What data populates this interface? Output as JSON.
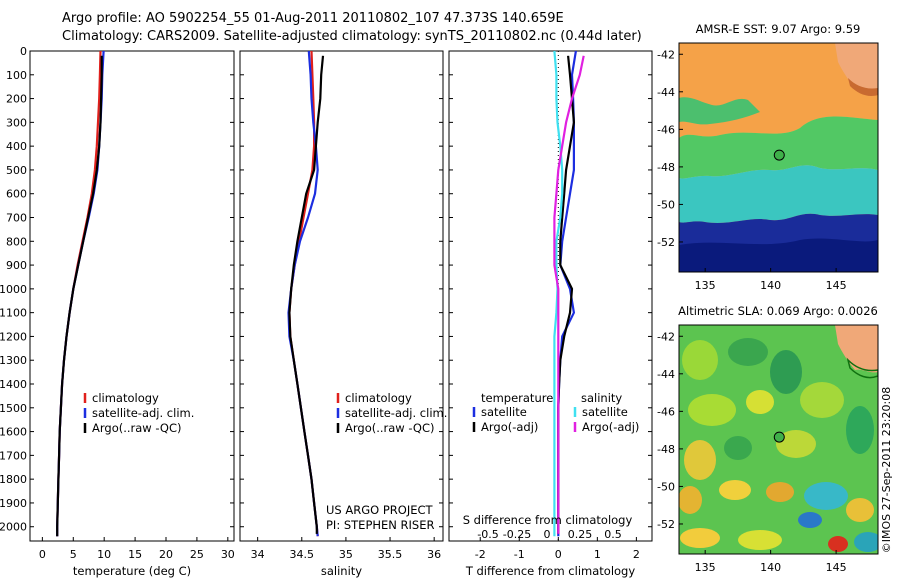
{
  "header": {
    "title_line1": "Argo profile: AO 5902254_55 01-Aug-2011 20110802_107 47.373S 140.659E",
    "title_line2": "Climatology: CARS2009. Satellite-adjusted climatology: synTS_20110802.nc (0.44d later)"
  },
  "colors": {
    "climatology": "#e0201c",
    "satellite_adj": "#1c2ee0",
    "argo": "#000000",
    "sat_salinity": "#3fe0f0",
    "argo_salinity": "#e020e0"
  },
  "depth_ticks": [
    "0",
    "100",
    "200",
    "300",
    "400",
    "500",
    "600",
    "700",
    "800",
    "900",
    "1000",
    "1100",
    "1200",
    "1300",
    "1400",
    "1500",
    "1600",
    "1700",
    "1800",
    "1900",
    "2000"
  ],
  "panels": {
    "temperature": {
      "xlabel": "temperature (deg C)",
      "xticks": [
        "0",
        "5",
        "10",
        "15",
        "20",
        "25",
        "30"
      ],
      "legend": [
        "climatology",
        "satellite-adj. clim.",
        "Argo(..raw -QC)"
      ]
    },
    "salinity": {
      "xlabel": "salinity",
      "xticks": [
        "34",
        "34.5",
        "35",
        "35.5",
        "36"
      ],
      "legend": [
        "climatology",
        "satellite-adj. clim.",
        "Argo(..raw -QC)"
      ],
      "credit_line1": "US ARGO PROJECT",
      "credit_line2": "PI: STEPHEN RISER"
    },
    "difference": {
      "xlabel": "T difference from climatology",
      "xticks": [
        "-2",
        "-1",
        "0",
        "1",
        "2"
      ],
      "s_label": "S difference from climatology",
      "s_ticks": [
        "-0.5",
        "-0.25",
        "0",
        "0.25",
        "0.5"
      ],
      "legend_temp_title": "temperature",
      "legend_sal_title": "salinity",
      "legend_temp": [
        "satellite",
        "Argo(-adj)"
      ],
      "legend_sal": [
        "satellite",
        "Argo(-adj)"
      ]
    }
  },
  "maps": {
    "sst": {
      "title": "AMSR-E SST: 9.07 Argo: 9.59",
      "yticks": [
        "-42",
        "-44",
        "-46",
        "-48",
        "-50",
        "-52"
      ],
      "xticks": [
        "135",
        "140",
        "145"
      ]
    },
    "sla": {
      "title": "Altimetric SLA: 0.069 Argo: 0.0026",
      "yticks": [
        "-42",
        "-44",
        "-46",
        "-48",
        "-50",
        "-52"
      ],
      "xticks": [
        "135",
        "140",
        "145"
      ]
    },
    "float_position": {
      "lon": 140.659,
      "lat": -47.373
    }
  },
  "stamp": "©IMOS 27-Sep-2011 23:20:08",
  "chart_data": [
    {
      "type": "line",
      "title": "",
      "xlabel": "temperature (deg C)",
      "ylabel": "",
      "xlim": [
        -2,
        31
      ],
      "ylim": [
        2060,
        0
      ],
      "series": [
        {
          "name": "climatology",
          "color": "#e0201c",
          "x": [
            9.4,
            9.3,
            9.2,
            9.0,
            8.8,
            8.5,
            8.0,
            7.3,
            6.5,
            5.7,
            5.0,
            4.4,
            3.9,
            3.5,
            3.2,
            3.0,
            2.8,
            2.7,
            2.6,
            2.5,
            2.4,
            2.4
          ],
          "y": [
            0,
            100,
            200,
            300,
            400,
            500,
            600,
            700,
            800,
            900,
            1000,
            1100,
            1200,
            1300,
            1400,
            1500,
            1600,
            1700,
            1800,
            1900,
            2000,
            2040
          ]
        },
        {
          "name": "satellite-adj. clim.",
          "color": "#1c2ee0",
          "x": [
            9.9,
            9.7,
            9.6,
            9.4,
            9.2,
            8.9,
            8.3,
            7.5,
            6.6,
            5.8,
            5.0,
            4.4,
            3.9,
            3.5,
            3.2,
            3.0,
            2.8,
            2.7,
            2.6,
            2.5,
            2.4,
            2.4
          ],
          "y": [
            0,
            100,
            200,
            300,
            400,
            500,
            600,
            700,
            800,
            900,
            1000,
            1100,
            1200,
            1300,
            1400,
            1500,
            1600,
            1700,
            1800,
            1900,
            2000,
            2040
          ]
        },
        {
          "name": "Argo(..raw -QC)",
          "color": "#000000",
          "x": [
            9.6,
            9.6,
            9.5,
            9.4,
            9.2,
            8.8,
            8.2,
            7.4,
            6.6,
            5.8,
            5.0,
            4.4,
            3.9,
            3.5,
            3.2,
            3.0,
            2.8,
            2.7,
            2.6,
            2.5,
            2.4,
            2.4
          ],
          "y": [
            20,
            100,
            200,
            300,
            400,
            500,
            600,
            700,
            800,
            900,
            1000,
            1100,
            1200,
            1300,
            1400,
            1500,
            1600,
            1700,
            1800,
            1900,
            2000,
            2040
          ]
        }
      ]
    },
    {
      "type": "line",
      "title": "",
      "xlabel": "salinity",
      "ylabel": "",
      "xlim": [
        33.8,
        36.1
      ],
      "ylim": [
        2060,
        0
      ],
      "series": [
        {
          "name": "climatology",
          "color": "#e0201c",
          "x": [
            34.61,
            34.62,
            34.63,
            34.64,
            34.64,
            34.62,
            34.57,
            34.52,
            34.47,
            34.42,
            34.38,
            34.36,
            34.37,
            34.41,
            34.45,
            34.49,
            34.53,
            34.57,
            34.61,
            34.64,
            34.67,
            34.68
          ],
          "y": [
            0,
            100,
            200,
            300,
            400,
            500,
            600,
            700,
            800,
            900,
            1000,
            1100,
            1200,
            1300,
            1400,
            1500,
            1600,
            1700,
            1800,
            1900,
            2000,
            2040
          ]
        },
        {
          "name": "satellite-adj. clim.",
          "color": "#1c2ee0",
          "x": [
            34.58,
            34.6,
            34.61,
            34.63,
            34.66,
            34.68,
            34.65,
            34.57,
            34.48,
            34.42,
            34.38,
            34.35,
            34.36,
            34.41,
            34.45,
            34.49,
            34.53,
            34.57,
            34.61,
            34.64,
            34.67,
            34.68
          ],
          "y": [
            0,
            100,
            200,
            300,
            400,
            500,
            600,
            700,
            800,
            900,
            1000,
            1100,
            1200,
            1300,
            1400,
            1500,
            1600,
            1700,
            1800,
            1900,
            2000,
            2040
          ]
        },
        {
          "name": "Argo(..raw -QC)",
          "color": "#000000",
          "x": [
            34.74,
            34.72,
            34.71,
            34.68,
            34.66,
            34.64,
            34.55,
            34.5,
            34.45,
            34.41,
            34.38,
            34.36,
            34.37,
            34.41,
            34.45,
            34.49,
            34.53,
            34.57,
            34.61,
            34.64,
            34.67,
            34.67
          ],
          "y": [
            20,
            100,
            200,
            300,
            400,
            500,
            600,
            700,
            800,
            900,
            1000,
            1100,
            1200,
            1300,
            1400,
            1500,
            1600,
            1700,
            1800,
            1900,
            2000,
            2030
          ]
        }
      ]
    },
    {
      "type": "line",
      "title": "",
      "xlabel": "T difference from climatology",
      "ylabel": "",
      "xlim": [
        -2.8,
        2.4
      ],
      "ylim": [
        2060,
        0
      ],
      "series": [
        {
          "name": "satellite",
          "group": "temperature",
          "color": "#1c2ee0",
          "x": [
            0.45,
            0.35,
            0.38,
            0.4,
            0.4,
            0.4,
            0.3,
            0.2,
            0.1,
            0.05,
            0.3,
            0.4,
            0.1,
            0.05,
            0.02,
            0.0,
            0.0,
            0.0,
            0.0,
            0.0,
            0.0,
            0.0
          ],
          "y": [
            0,
            100,
            200,
            300,
            400,
            500,
            600,
            700,
            800,
            900,
            1000,
            1100,
            1200,
            1300,
            1400,
            1500,
            1600,
            1700,
            1800,
            1900,
            2000,
            2040
          ]
        },
        {
          "name": "Argo(-adj)",
          "group": "temperature",
          "color": "#000000",
          "x": [
            0.25,
            0.3,
            0.35,
            0.4,
            0.3,
            0.2,
            0.15,
            0.1,
            0.05,
            0.05,
            0.35,
            0.3,
            0.15,
            0.05,
            0.02,
            0.0,
            0.0,
            0.0,
            0.0,
            0.0,
            0.0,
            0.0
          ],
          "y": [
            20,
            100,
            200,
            300,
            400,
            500,
            600,
            700,
            800,
            900,
            1000,
            1100,
            1200,
            1300,
            1400,
            1500,
            1600,
            1700,
            1800,
            1900,
            2000,
            2030
          ]
        },
        {
          "name": "satellite",
          "group": "salinity",
          "color": "#3fe0f0",
          "x": [
            -0.1,
            -0.05,
            -0.05,
            -0.02,
            0.05,
            0.1,
            0.1,
            0.05,
            -0.05,
            -0.05,
            -0.02,
            -0.05,
            -0.1,
            -0.1,
            -0.1,
            -0.1,
            -0.1,
            -0.1,
            -0.1,
            -0.1,
            -0.1,
            -0.1
          ],
          "y": [
            0,
            100,
            200,
            300,
            400,
            500,
            600,
            700,
            800,
            900,
            1000,
            1100,
            1200,
            1300,
            1400,
            1500,
            1600,
            1700,
            1800,
            1900,
            2000,
            2040
          ]
        },
        {
          "name": "Argo(-adj)",
          "group": "salinity",
          "color": "#e020e0",
          "x": [
            0.65,
            0.55,
            0.35,
            0.2,
            0.1,
            0.0,
            -0.05,
            -0.1,
            -0.1,
            -0.1,
            0.0,
            0.0,
            0.0,
            0.0,
            0.0,
            0.0,
            0.0,
            0.0,
            0.0,
            0.0,
            0.0,
            0.0
          ],
          "y": [
            20,
            100,
            200,
            300,
            400,
            500,
            600,
            700,
            800,
            900,
            1000,
            1100,
            1200,
            1300,
            1400,
            1500,
            1600,
            1700,
            1800,
            1900,
            2000,
            2030
          ]
        }
      ]
    }
  ]
}
